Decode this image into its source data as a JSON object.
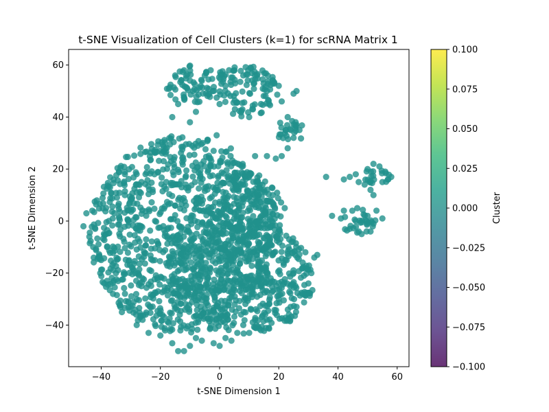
{
  "chart_data": {
    "type": "scatter",
    "title": "t-SNE Visualization of Cell Clusters (k=1) for scRNA Matrix 1",
    "xlabel": "t-SNE Dimension 1",
    "ylabel": "t-SNE Dimension 2",
    "xlim": [
      -51,
      64
    ],
    "ylim": [
      -56,
      66
    ],
    "xticks": [
      "−40",
      "−20",
      "0",
      "20",
      "40",
      "60"
    ],
    "xtick_values": [
      -40,
      -20,
      0,
      20,
      40,
      60
    ],
    "yticks": [
      "−40",
      "−20",
      "0",
      "20",
      "40",
      "60"
    ],
    "ytick_values": [
      -40,
      -20,
      0,
      20,
      40,
      60
    ],
    "grid": false,
    "point_color": "#21918c",
    "point_alpha": 0.8,
    "colorbar": {
      "label": "Cluster",
      "range": [
        -0.1,
        0.1
      ],
      "ticks": [
        "0.100",
        "0.075",
        "0.050",
        "0.025",
        "0.000",
        "−0.025",
        "−0.050",
        "−0.075",
        "−0.100"
      ],
      "tick_values": [
        0.1,
        0.075,
        0.05,
        0.025,
        0.0,
        -0.025,
        -0.05,
        -0.075,
        -0.1
      ],
      "colormap": [
        "#440154",
        "#482878",
        "#3e4989",
        "#31688e",
        "#26828e",
        "#1f9e89",
        "#35b779",
        "#6ece58",
        "#b5de2b",
        "#fde725"
      ]
    },
    "series": [
      {
        "cluster": 0,
        "points": [
          [
            -46,
            -2
          ],
          [
            -45,
            3
          ],
          [
            -44,
            -6
          ],
          [
            -43,
            4
          ],
          [
            -42,
            -3
          ],
          [
            -41,
            -14
          ],
          [
            -40,
            -15
          ],
          [
            -39,
            -24
          ],
          [
            -38,
            -10
          ],
          [
            -37,
            13
          ],
          [
            -36,
            -28
          ],
          [
            -35,
            -20
          ],
          [
            -34,
            19
          ],
          [
            -33,
            -35
          ],
          [
            -32,
            10
          ],
          [
            -30,
            -33
          ],
          [
            -28,
            -40
          ],
          [
            -26,
            -38
          ],
          [
            -25,
            18
          ],
          [
            -24,
            -43
          ],
          [
            -22,
            18
          ],
          [
            -20,
            -44
          ],
          [
            -18,
            15
          ],
          [
            -16,
            -47
          ],
          [
            -14,
            -50
          ],
          [
            -12,
            -50
          ],
          [
            -10,
            -48
          ],
          [
            -8,
            -45
          ],
          [
            -6,
            -46
          ],
          [
            -4,
            19
          ],
          [
            -2,
            -47
          ],
          [
            0,
            -48
          ],
          [
            2,
            -45
          ],
          [
            4,
            -46
          ],
          [
            5,
            15
          ],
          [
            6,
            -43
          ],
          [
            8,
            -40
          ],
          [
            10,
            -43
          ],
          [
            12,
            -38
          ],
          [
            14,
            -42
          ],
          [
            16,
            -38
          ],
          [
            18,
            10
          ],
          [
            20,
            -30
          ],
          [
            22,
            5
          ],
          [
            23,
            -38
          ],
          [
            24,
            -33
          ],
          [
            25,
            -20
          ],
          [
            26,
            -33
          ],
          [
            28,
            -28
          ],
          [
            29,
            -12
          ],
          [
            30,
            -24
          ],
          [
            31,
            -20
          ],
          [
            32,
            -14
          ],
          [
            33,
            -13
          ],
          [
            -2,
            27
          ],
          [
            -1,
            33
          ],
          [
            12,
            25
          ],
          [
            16,
            25
          ],
          [
            19,
            24
          ],
          [
            21,
            25
          ],
          [
            23,
            28
          ],
          [
            -15,
            56
          ],
          [
            -12,
            58
          ],
          [
            -10,
            54
          ],
          [
            -8,
            42
          ],
          [
            -5,
            56
          ],
          [
            -3,
            58
          ],
          [
            0,
            45
          ],
          [
            2,
            52
          ],
          [
            5,
            58
          ],
          [
            8,
            56
          ],
          [
            10,
            40
          ],
          [
            12,
            56
          ],
          [
            14,
            45
          ],
          [
            16,
            50
          ],
          [
            18,
            54
          ],
          [
            20,
            52
          ],
          [
            21,
            46
          ],
          [
            23,
            40
          ],
          [
            24,
            35
          ],
          [
            25,
            32
          ],
          [
            26,
            37
          ],
          [
            27,
            35
          ],
          [
            25,
            49
          ],
          [
            26,
            50
          ],
          [
            -16,
            40
          ],
          [
            -14,
            45
          ],
          [
            -10,
            38
          ],
          [
            38,
            2
          ],
          [
            41,
            1
          ],
          [
            42,
            4
          ],
          [
            44,
            -3
          ],
          [
            46,
            0
          ],
          [
            48,
            -5
          ],
          [
            50,
            2
          ],
          [
            52,
            -1
          ],
          [
            53,
            4
          ],
          [
            51,
            -4
          ],
          [
            47,
            -4
          ],
          [
            55,
            1
          ],
          [
            36,
            17
          ],
          [
            42,
            16
          ],
          [
            44,
            17
          ],
          [
            46,
            18
          ],
          [
            47,
            15
          ],
          [
            50,
            20
          ],
          [
            52,
            22
          ],
          [
            54,
            21
          ],
          [
            56,
            19
          ],
          [
            57,
            16
          ],
          [
            49,
            14
          ],
          [
            51,
            12
          ],
          [
            52,
            10
          ],
          [
            55,
            15
          ],
          [
            58,
            17
          ]
        ],
        "regions": [
          {
            "kind": "ellipse",
            "cx": -12,
            "cy": -5,
            "rx": 32,
            "ry": 38,
            "density": 1.0
          },
          {
            "kind": "ellipse",
            "cx": 8,
            "cy": -22,
            "rx": 24,
            "ry": 22,
            "density": 1.0
          },
          {
            "kind": "ellipse",
            "cx": 8,
            "cy": 2,
            "rx": 14,
            "ry": 16,
            "density": 0.9
          },
          {
            "kind": "ellipse",
            "cx": -10,
            "cy": 52,
            "rx": 8,
            "ry": 8,
            "density": 1.0
          },
          {
            "kind": "ellipse",
            "cx": 8,
            "cy": 50,
            "rx": 12,
            "ry": 10,
            "density": 1.0
          },
          {
            "kind": "ellipse",
            "cx": 24,
            "cy": 35,
            "rx": 5,
            "ry": 5,
            "density": 1.0
          },
          {
            "kind": "ellipse",
            "cx": 47,
            "cy": 0,
            "rx": 6,
            "ry": 5,
            "density": 1.0
          },
          {
            "kind": "ellipse",
            "cx": 53,
            "cy": 18,
            "rx": 5,
            "ry": 4,
            "density": 1.0
          }
        ]
      }
    ]
  }
}
